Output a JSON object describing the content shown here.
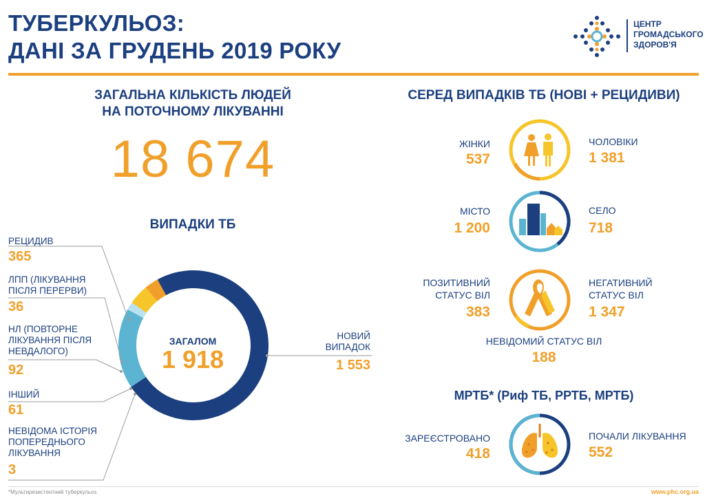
{
  "header": {
    "title_line1": "ТУБЕРКУЛЬОЗ:",
    "title_line2": "ДАНІ ЗА ГРУДЕНЬ 2019 РОКУ",
    "logo_line1": "ЦЕНТР",
    "logo_line2": "ГРОМАДСЬКОГО",
    "logo_line3": "ЗДОРОВ'Я"
  },
  "treatment": {
    "heading_line1": "ЗАГАЛЬНА КІЛЬКІСТЬ ЛЮДЕЙ",
    "heading_line2": "НА ПОТОЧНОМУ ЛІКУВАННІ",
    "total": "18 674"
  },
  "tb_cases": {
    "heading": "ВИПАДКИ ТБ",
    "total_label": "ЗАГАЛОМ",
    "total_value": "1 918",
    "new_label_line1": "НОВИЙ",
    "new_label_line2": "ВИПАДОК",
    "new_value": "1 553",
    "relapse_label": "РЕЦИДИВ",
    "relapse_value": "365",
    "ltfu_label_line1": "ЛПП (ЛІКУВАННЯ",
    "ltfu_label_line2": "ПІСЛЯ ПЕРЕРВИ)",
    "ltfu_value": "36",
    "failure_label_line1": "НЛ (ПОВТОРНЕ",
    "failure_label_line2": "ЛІКУВАННЯ ПІСЛЯ",
    "failure_label_line3": "НЕВДАЛОГО)",
    "failure_value": "92",
    "other_label": "ІНШИЙ",
    "other_value": "61",
    "unknown_label_line1": "НЕВІДОМА ІСТОРІЯ",
    "unknown_label_line2": "ПОПЕРЕДНЬОГО",
    "unknown_label_line3": "ЛІКУВАННЯ",
    "unknown_value": "3"
  },
  "among_cases": {
    "heading": "СЕРЕД ВИПАДКІВ ТБ (НОВІ + РЕЦИДИВИ)",
    "women_label": "ЖІНКИ",
    "women_value": "537",
    "men_label": "ЧОЛОВІКИ",
    "men_value": "1 381",
    "city_label": "МІСТО",
    "city_value": "1 200",
    "village_label": "СЕЛО",
    "village_value": "718",
    "hiv_pos_line1": "ПОЗИТИВНИЙ",
    "hiv_pos_line2": "СТАТУС ВІЛ",
    "hiv_pos_value": "383",
    "hiv_neg_line1": "НЕГАТИВНИЙ",
    "hiv_neg_line2": "СТАТУС ВІЛ",
    "hiv_neg_value": "1 347",
    "hiv_unknown_label": "НЕВІДОМИЙ СТАТУС ВІЛ",
    "hiv_unknown_value": "188"
  },
  "mdr": {
    "heading": "МРТБ* (Риф ТБ, РРТБ, МРТБ)",
    "registered_label": "ЗАРЕЄСТРОВАНО",
    "registered_value": "418",
    "started_label": "ПОЧАЛИ ЛІКУВАННЯ",
    "started_value": "552"
  },
  "footer": {
    "note": "*Мультирезистентний туберкульоз.",
    "site": "www.phc.org.ua"
  },
  "colors": {
    "navy": "#1b3f7f",
    "orange": "#f0a02a",
    "light_blue": "#5bb4d2",
    "yellow": "#f6c52a"
  },
  "chart_data": {
    "type": "pie",
    "categories": [
      "НОВИЙ ВИПАДОК",
      "РЕЦИДИВ",
      "ЛПП (ЛІКУВАННЯ ПІСЛЯ ПЕРЕРВИ)",
      "НЛ (ПОВТОРНЕ ЛІКУВАННЯ ПІСЛЯ НЕВДАЛОГО)",
      "ІНШИЙ",
      "НЕВІДОМА ІСТОРІЯ ПОПЕРЕДНЬОГО ЛІКУВАННЯ"
    ],
    "values": [
      1553,
      365,
      36,
      92,
      61,
      3
    ],
    "colors": [
      "#1b3f7f",
      "#5bb4d2",
      "#b9e1ef",
      "#f6c52a",
      "#f0a02a",
      "#e07f1f"
    ],
    "title": "ВИПАДКИ ТБ",
    "style": "donut"
  }
}
